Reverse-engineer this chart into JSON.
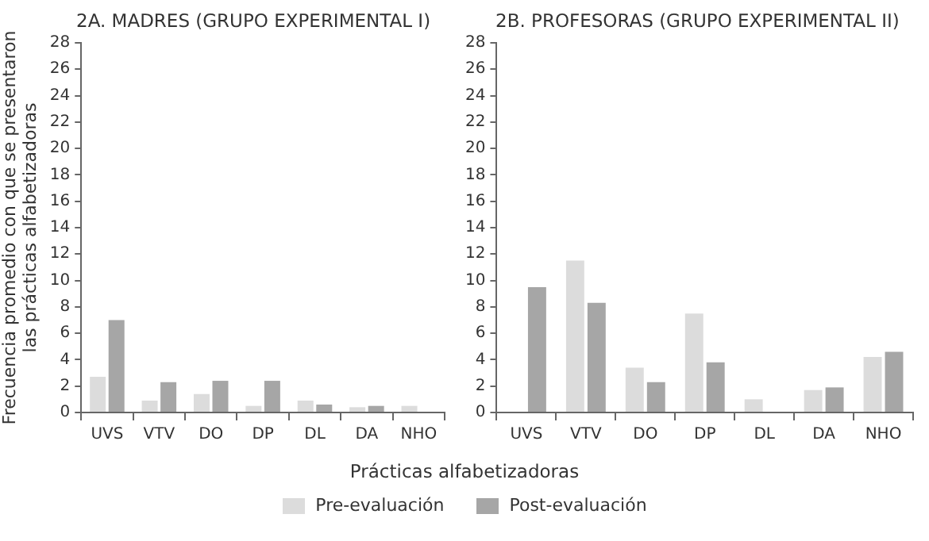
{
  "chart_data": [
    {
      "type": "bar",
      "title": "2A. MADRES (GRUPO EXPERIMENTAL I)",
      "ylabel": "Frecuencia promedio con que se presentaron las prácticas alfabetizadoras",
      "xlabel": "Prácticas alfabetizadoras",
      "categories": [
        "UVS",
        "VTV",
        "DO",
        "DP",
        "DL",
        "DA",
        "NHO"
      ],
      "series": [
        {
          "name": "Pre-evaluación",
          "color": "#dcdcdc",
          "values": [
            2.7,
            0.9,
            1.4,
            0.5,
            0.9,
            0.4,
            0.5
          ]
        },
        {
          "name": "Post-evaluación",
          "color": "#a6a6a6",
          "values": [
            7.0,
            2.3,
            2.4,
            2.4,
            0.6,
            0.5,
            0
          ]
        }
      ],
      "ylim": [
        0,
        28
      ],
      "yticks": [
        0,
        2,
        4,
        6,
        8,
        10,
        12,
        14,
        16,
        18,
        20,
        22,
        24,
        26,
        28
      ],
      "grid": false,
      "legend": "bottom"
    },
    {
      "type": "bar",
      "title": "2B. PROFESORAS (GRUPO EXPERIMENTAL II)",
      "categories": [
        "UVS",
        "VTV",
        "DO",
        "DP",
        "DL",
        "DA",
        "NHO"
      ],
      "series": [
        {
          "color": "#dcdcdc",
          "values": [
            0,
            11.5,
            3.4,
            7.5,
            1.0,
            1.7,
            4.2
          ]
        },
        {
          "color": "#a6a6a6",
          "values": [
            9.5,
            8.3,
            2.3,
            3.8,
            0,
            1.9,
            4.6
          ]
        }
      ],
      "ylim": [
        0,
        28
      ],
      "yticks": [
        0,
        2,
        4,
        6,
        8,
        10,
        12,
        14,
        16,
        18,
        20,
        22,
        24,
        26,
        28
      ],
      "grid": false
    }
  ]
}
